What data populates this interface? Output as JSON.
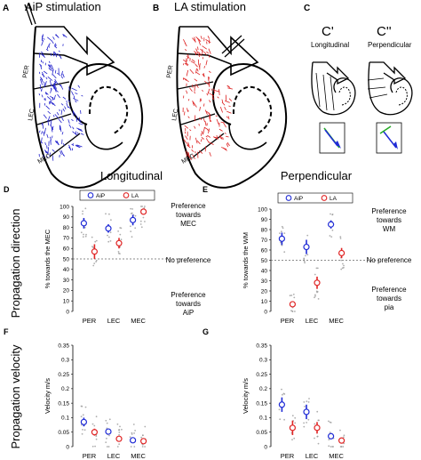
{
  "panels": {
    "A": {
      "letter": "A",
      "title": "AiP stimulation",
      "region_labels": [
        "PER",
        "LEC",
        "MEC"
      ],
      "vector_color": "#2222cc"
    },
    "B": {
      "letter": "B",
      "title": "LA stimulation",
      "region_labels": [
        "PER",
        "LEC",
        "MEC"
      ],
      "vector_color": "#dd2222"
    },
    "C": {
      "letter": "C",
      "longitudinal": {
        "title": "C'",
        "subtitle": "Longitudinal"
      },
      "perpendicular": {
        "title": "C''",
        "subtitle": "Perpendicular"
      }
    }
  },
  "column_titles": {
    "left": "Longitudinal",
    "right": "Perpendicular"
  },
  "row_titles": {
    "direction": "Propagation direction",
    "velocity": "Propagation velocity"
  },
  "colors": {
    "aip": "#1f2bd6",
    "la": "#e02424",
    "dots": "#9a9a9a"
  },
  "annotations": {
    "D": {
      "top": [
        "Preference",
        "towards",
        "MEC"
      ],
      "mid": "No preference",
      "bottom": [
        "Preference",
        "towards",
        "AiP"
      ]
    },
    "E": {
      "top": [
        "Preference",
        "towards",
        "WM"
      ],
      "mid": "No preference",
      "bottom": [
        "Preference",
        "towards",
        "pia"
      ]
    }
  },
  "chart_data": [
    {
      "id": "D",
      "letter": "D",
      "type": "scatter",
      "ylabel": "% towards the MEC",
      "ylim": [
        0,
        100
      ],
      "yticks": [
        0,
        10,
        20,
        30,
        40,
        50,
        60,
        70,
        80,
        90,
        100
      ],
      "categories": [
        "PER",
        "LEC",
        "MEC"
      ],
      "reference_line": 50,
      "legend": [
        "AiP",
        "LA"
      ],
      "series": [
        {
          "name": "AiP",
          "values": [
            84,
            79,
            87
          ],
          "errors": [
            5,
            4,
            5
          ]
        },
        {
          "name": "LA",
          "values": [
            57,
            65,
            95
          ],
          "errors": [
            7,
            5,
            2
          ]
        }
      ]
    },
    {
      "id": "E",
      "letter": "E",
      "type": "scatter",
      "ylabel": "% towards the WM",
      "ylim": [
        0,
        100
      ],
      "yticks": [
        0,
        10,
        20,
        30,
        40,
        50,
        60,
        70,
        80,
        90,
        100
      ],
      "categories": [
        "PER",
        "LEC",
        "MEC"
      ],
      "reference_line": 50,
      "legend": [
        "AiP",
        "LA"
      ],
      "series": [
        {
          "name": "AiP",
          "values": [
            71,
            63,
            85
          ],
          "errors": [
            6,
            7,
            4
          ]
        },
        {
          "name": "LA",
          "values": [
            7,
            28,
            57
          ],
          "errors": [
            3,
            6,
            5
          ]
        }
      ]
    },
    {
      "id": "F",
      "letter": "F",
      "type": "scatter",
      "ylabel": "Velocity m/s",
      "ylim": [
        0,
        0.35
      ],
      "yticks": [
        0,
        0.05,
        0.1,
        0.15,
        0.2,
        0.25,
        0.3,
        0.35
      ],
      "categories": [
        "PER",
        "LEC",
        "MEC"
      ],
      "series": [
        {
          "name": "AiP",
          "values": [
            0.085,
            0.052,
            0.022
          ],
          "errors": [
            0.015,
            0.01,
            0.005
          ]
        },
        {
          "name": "LA",
          "values": [
            0.05,
            0.027,
            0.019
          ],
          "errors": [
            0.012,
            0.008,
            0.004
          ]
        }
      ]
    },
    {
      "id": "G",
      "letter": "G",
      "type": "scatter",
      "ylabel": "Velocity m/s",
      "ylim": [
        0,
        0.35
      ],
      "yticks": [
        0,
        0.05,
        0.1,
        0.15,
        0.2,
        0.25,
        0.3,
        0.35
      ],
      "categories": [
        "PER",
        "LEC",
        "MEC"
      ],
      "series": [
        {
          "name": "AiP",
          "values": [
            0.145,
            0.12,
            0.036
          ],
          "errors": [
            0.025,
            0.025,
            0.006
          ]
        },
        {
          "name": "LA",
          "values": [
            0.065,
            0.065,
            0.021
          ],
          "errors": [
            0.025,
            0.02,
            0.005
          ]
        }
      ]
    }
  ]
}
